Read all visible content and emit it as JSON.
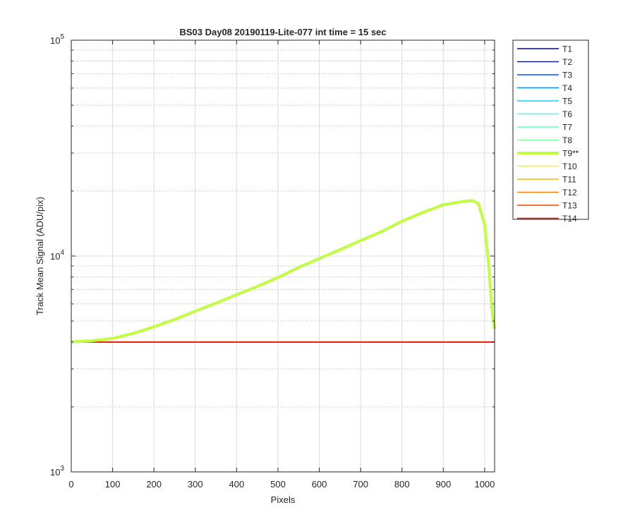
{
  "chart_data": {
    "type": "line",
    "title": "BS03 Day08 20190119-Lite-077 int time = 15 sec",
    "xlabel": "Pixels",
    "ylabel": "Track Mean Signal (ADU/pix)",
    "xlim": [
      0,
      1024
    ],
    "ylim": [
      1000,
      100000
    ],
    "yscale": "log",
    "x_ticks": [
      0,
      100,
      200,
      300,
      400,
      500,
      600,
      700,
      800,
      900,
      1000
    ],
    "y_ticks": [
      {
        "value": 1000,
        "base": "10",
        "exp": "3"
      },
      {
        "value": 10000,
        "base": "10",
        "exp": "4"
      },
      {
        "value": 100000,
        "base": "10",
        "exp": "5"
      }
    ],
    "grid": true,
    "legend_position": "outside-right",
    "series": [
      {
        "name": "T1",
        "color": "#00008f",
        "width": 1.5,
        "flat": 4000
      },
      {
        "name": "T2",
        "color": "#0010ff",
        "width": 1.5,
        "flat": 4000
      },
      {
        "name": "T3",
        "color": "#0050ff",
        "width": 1.5,
        "flat": 4000
      },
      {
        "name": "T4",
        "color": "#0090ff",
        "width": 1.5,
        "flat": 4000
      },
      {
        "name": "T5",
        "color": "#10cfff",
        "width": 1.5,
        "flat": 4000
      },
      {
        "name": "T6",
        "color": "#40ffef",
        "width": 1.5,
        "flat": 4000
      },
      {
        "name": "T7",
        "color": "#60ffcf",
        "width": 1.5,
        "flat": 4000
      },
      {
        "name": "T8",
        "color": "#80ff9f",
        "width": 1.5,
        "flat": 4000
      },
      {
        "name": "T9**",
        "color": "#bfff3f",
        "width": 4,
        "x": [
          0,
          50,
          100,
          150,
          200,
          250,
          300,
          350,
          400,
          450,
          500,
          550,
          600,
          650,
          700,
          750,
          800,
          850,
          900,
          950,
          970,
          985,
          1000,
          1010,
          1018,
          1024
        ],
        "y": [
          4000,
          4050,
          4150,
          4380,
          4700,
          5080,
          5550,
          6050,
          6620,
          7230,
          7950,
          8850,
          9750,
          10700,
          11800,
          12950,
          14500,
          15900,
          17300,
          17900,
          18100,
          17500,
          14000,
          9000,
          5500,
          4600
        ]
      },
      {
        "name": "T10",
        "color": "#efff10",
        "width": 1.5,
        "flat": 4000
      },
      {
        "name": "T11",
        "color": "#efbf00",
        "width": 1.5,
        "flat": 4000
      },
      {
        "name": "T12",
        "color": "#ff8000",
        "width": 1.5,
        "flat": 4000
      },
      {
        "name": "T13",
        "color": "#ff4000",
        "width": 1.5,
        "flat": 4000
      },
      {
        "name": "T14",
        "color": "#ef0000",
        "width": 1.5,
        "flat": 3990
      }
    ]
  }
}
